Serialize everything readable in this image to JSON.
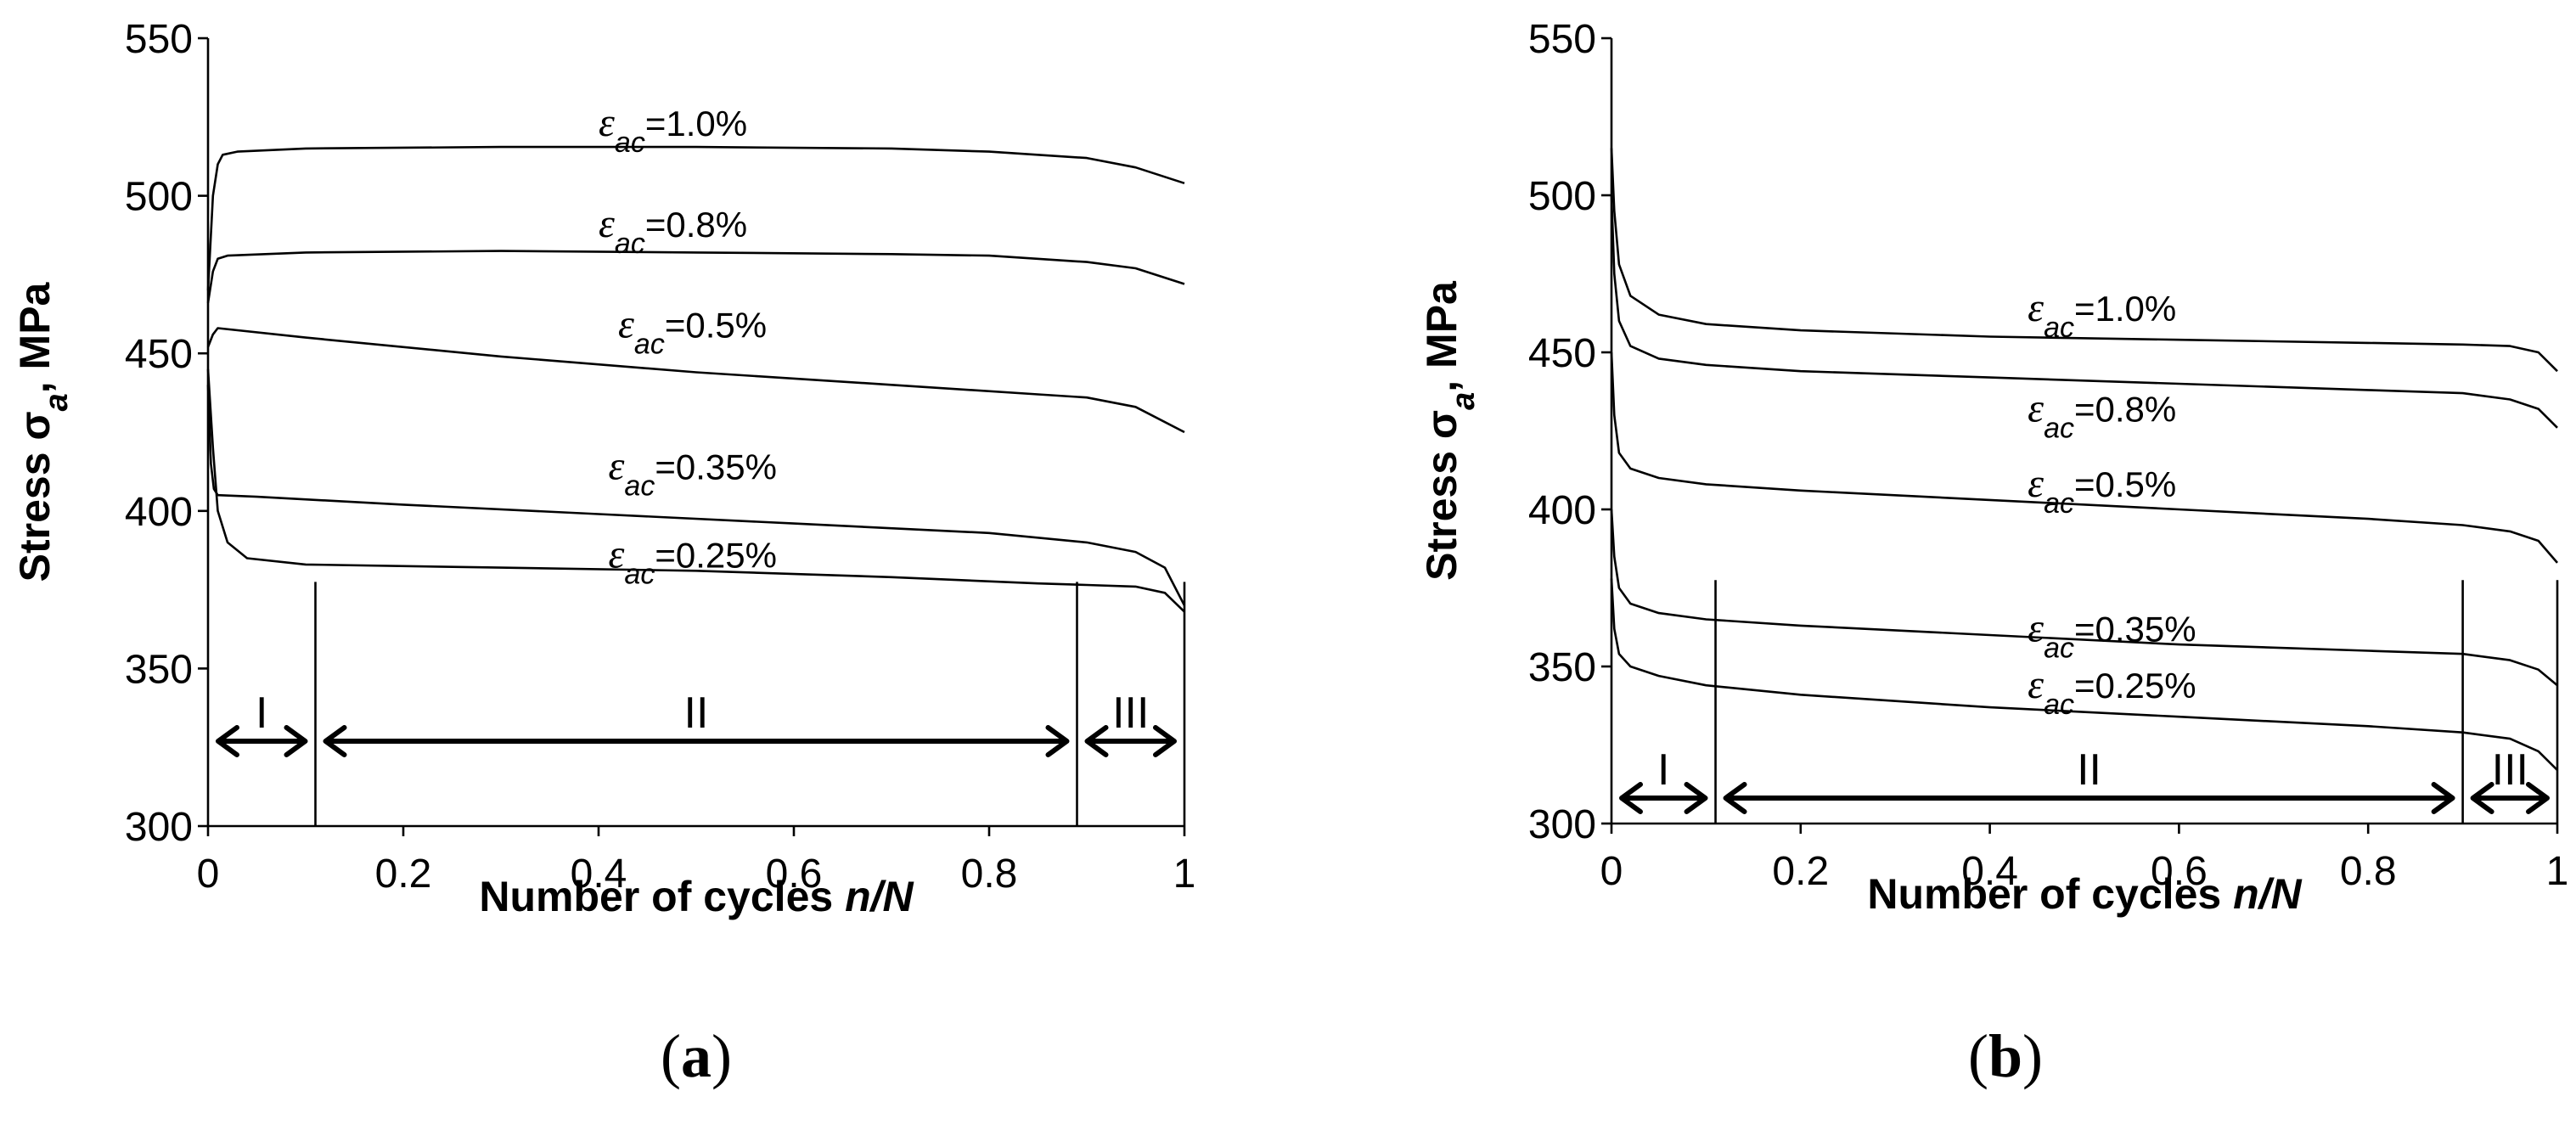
{
  "chart_data": [
    {
      "type": "line",
      "panel_label": "a",
      "xlabel_prefix": "Number of cycles ",
      "xlabel_var": "n/N",
      "ylabel_prefix": "Stress σ",
      "ylabel_sub": "a",
      "ylabel_suffix": ", MPa",
      "xlim": [
        0,
        1
      ],
      "ylim": [
        300,
        550
      ],
      "xticks": [
        "0",
        "0.2",
        "0.4",
        "0.6",
        "0.8",
        "1"
      ],
      "yticks": [
        "300",
        "350",
        "400",
        "450",
        "500",
        "550"
      ],
      "series": [
        {
          "name": "1.0%",
          "label_prefix": "ε",
          "label_sub": "ac",
          "label_value": "=1.0%",
          "label_at": [
            0.4,
            519
          ],
          "x": [
            0,
            0.005,
            0.01,
            0.015,
            0.03,
            0.1,
            0.3,
            0.5,
            0.7,
            0.8,
            0.9,
            0.95,
            1.0
          ],
          "y": [
            470,
            500,
            510,
            513,
            514,
            515,
            515.5,
            515.5,
            515,
            514,
            512,
            509,
            504
          ]
        },
        {
          "name": "0.8%",
          "label_prefix": "ε",
          "label_sub": "ac",
          "label_value": "=0.8%",
          "label_at": [
            0.4,
            487
          ],
          "x": [
            0,
            0.005,
            0.01,
            0.02,
            0.1,
            0.3,
            0.5,
            0.7,
            0.8,
            0.9,
            0.95,
            1.0
          ],
          "y": [
            466,
            476,
            480,
            481,
            482,
            482.5,
            482,
            481.5,
            481,
            479,
            477,
            472
          ]
        },
        {
          "name": "0.5%",
          "label_prefix": "ε",
          "label_sub": "ac",
          "label_value": "=0.5%",
          "label_at": [
            0.42,
            455
          ],
          "x": [
            0,
            0.005,
            0.01,
            0.1,
            0.3,
            0.5,
            0.7,
            0.85,
            0.9,
            0.95,
            1.0
          ],
          "y": [
            452,
            456,
            458,
            455,
            449,
            444,
            440,
            437,
            436,
            433,
            425
          ]
        },
        {
          "name": "0.35%",
          "label_prefix": "ε",
          "label_sub": "ac",
          "label_value": "=0.35%",
          "label_at": [
            0.41,
            410
          ],
          "x": [
            0,
            0.003,
            0.006,
            0.01,
            0.05,
            0.2,
            0.4,
            0.6,
            0.8,
            0.9,
            0.95,
            0.98,
            1.0
          ],
          "y": [
            440,
            415,
            407,
            405,
            404.5,
            402,
            399,
            396,
            393,
            390,
            387,
            382,
            370
          ]
        },
        {
          "name": "0.25%",
          "label_prefix": "ε",
          "label_sub": "ac",
          "label_value": "=0.25%",
          "label_at": [
            0.41,
            382
          ],
          "x": [
            0,
            0.005,
            0.01,
            0.02,
            0.04,
            0.1,
            0.3,
            0.5,
            0.7,
            0.85,
            0.9,
            0.95,
            0.98,
            1.0
          ],
          "y": [
            445,
            420,
            400,
            390,
            385,
            383,
            382,
            381,
            379,
            377,
            376.5,
            376,
            374,
            368
          ]
        }
      ],
      "dividers": [
        0.11,
        0.89,
        1.0
      ],
      "regions": [
        {
          "label": "I",
          "x0": 0,
          "x1": 0.11
        },
        {
          "label": "II",
          "x0": 0.11,
          "x1": 0.89
        },
        {
          "label": "III",
          "x0": 0.89,
          "x1": 1.0
        }
      ]
    },
    {
      "type": "line",
      "panel_label": "b",
      "xlabel_prefix": "Number of cycles ",
      "xlabel_var": "n/N",
      "ylabel_prefix": "Stress σ",
      "ylabel_sub": "a",
      "ylabel_suffix": ", MPa",
      "xlim": [
        0,
        1
      ],
      "ylim": [
        300,
        550
      ],
      "xticks": [
        "0",
        "0.2",
        "0.4",
        "0.6",
        "0.8",
        "1"
      ],
      "yticks": [
        "300",
        "350",
        "400",
        "450",
        "500",
        "550"
      ],
      "series": [
        {
          "name": "1.0%",
          "label_prefix": "ε",
          "label_sub": "ac",
          "label_value": "=1.0%",
          "label_at": [
            0.44,
            460
          ],
          "x": [
            0,
            0.003,
            0.008,
            0.02,
            0.05,
            0.1,
            0.2,
            0.4,
            0.6,
            0.8,
            0.9,
            0.95,
            0.98,
            1.0
          ],
          "y": [
            515,
            495,
            478,
            468,
            462,
            459,
            457,
            455,
            454,
            453,
            452.5,
            452,
            450,
            444
          ]
        },
        {
          "name": "0.8%",
          "label_prefix": "ε",
          "label_sub": "ac",
          "label_value": "=0.8%",
          "label_at": [
            0.44,
            428
          ],
          "x": [
            0,
            0.003,
            0.008,
            0.02,
            0.05,
            0.1,
            0.2,
            0.4,
            0.6,
            0.8,
            0.9,
            0.95,
            0.98,
            1.0
          ],
          "y": [
            500,
            475,
            460,
            452,
            448,
            446,
            444,
            442,
            440,
            438,
            437,
            435,
            432,
            426
          ]
        },
        {
          "name": "0.5%",
          "label_prefix": "ε",
          "label_sub": "ac",
          "label_value": "=0.5%",
          "label_at": [
            0.44,
            404
          ],
          "x": [
            0,
            0.003,
            0.008,
            0.02,
            0.05,
            0.1,
            0.2,
            0.4,
            0.6,
            0.8,
            0.9,
            0.95,
            0.98,
            1.0
          ],
          "y": [
            450,
            430,
            418,
            413,
            410,
            408,
            406,
            403,
            400,
            397,
            395,
            393,
            390,
            383
          ]
        },
        {
          "name": "0.35%",
          "label_prefix": "ε",
          "label_sub": "ac",
          "label_value": "=0.35%",
          "label_at": [
            0.44,
            358
          ],
          "x": [
            0,
            0.003,
            0.008,
            0.02,
            0.05,
            0.1,
            0.2,
            0.4,
            0.6,
            0.8,
            0.9,
            0.95,
            0.98,
            1.0
          ],
          "y": [
            400,
            385,
            375,
            370,
            367,
            365,
            363,
            360,
            357,
            355,
            354,
            352,
            349,
            344
          ]
        },
        {
          "name": "0.25%",
          "label_prefix": "ε",
          "label_sub": "ac",
          "label_value": "=0.25%",
          "label_at": [
            0.44,
            340
          ],
          "x": [
            0,
            0.003,
            0.008,
            0.02,
            0.05,
            0.1,
            0.2,
            0.4,
            0.6,
            0.8,
            0.9,
            0.95,
            0.98,
            1.0
          ],
          "y": [
            378,
            362,
            354,
            350,
            347,
            344,
            341,
            337,
            334,
            331,
            329,
            327,
            323,
            317
          ]
        }
      ],
      "dividers": [
        0.11,
        0.9,
        1.0
      ],
      "regions": [
        {
          "label": "I",
          "x0": 0,
          "x1": 0.11
        },
        {
          "label": "II",
          "x0": 0.11,
          "x1": 0.9
        },
        {
          "label": "III",
          "x0": 0.9,
          "x1": 1.0
        }
      ]
    }
  ]
}
